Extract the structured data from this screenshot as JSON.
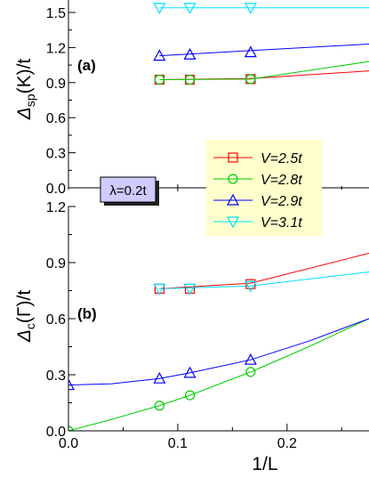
{
  "chart_data": [
    {
      "type": "line",
      "panel_label": "(a)",
      "ylabel": {
        "main": "Δ",
        "sub": "sp",
        "rest": "(K)/t"
      },
      "xlim": [
        0,
        0.275
      ],
      "ylim": [
        0,
        1.5
      ],
      "yticks": [
        "0.0",
        "0.3",
        "0.6",
        "0.9",
        "1.2",
        "1.5"
      ],
      "annotation": "λ=0.2t",
      "legend": {
        "placement": "right",
        "entries": [
          {
            "series": 0,
            "label": "V=2.5t"
          },
          {
            "series": 1,
            "label": "V=2.8t"
          },
          {
            "series": 2,
            "label": "V=2.9t"
          },
          {
            "series": 3,
            "label": "V=3.1t"
          }
        ]
      },
      "series": [
        {
          "name": "V=2.5t",
          "color": "#ff0000",
          "marker": "square",
          "x": [
            0.0833,
            0.1111,
            0.1667
          ],
          "y": [
            0.925,
            0.925,
            0.93
          ],
          "fit_x": [
            0.0833,
            0.1667,
            0.275
          ],
          "fit_y": [
            0.925,
            0.935,
            1.0
          ]
        },
        {
          "name": "V=2.8t",
          "color": "#00cc00",
          "marker": "circle",
          "x": [
            0.0833,
            0.1111,
            0.1667
          ],
          "y": [
            0.925,
            0.925,
            0.93
          ],
          "fit_x": [
            0.0833,
            0.1667,
            0.275
          ],
          "fit_y": [
            0.925,
            0.93,
            1.08
          ]
        },
        {
          "name": "V=2.9t",
          "color": "#0000ff",
          "marker": "triangle-up",
          "x": [
            0.0833,
            0.1111,
            0.1667
          ],
          "y": [
            1.13,
            1.14,
            1.16
          ],
          "fit_x": [
            0.0833,
            0.275
          ],
          "fit_y": [
            1.13,
            1.23
          ]
        },
        {
          "name": "V=3.1t",
          "color": "#00e0ff",
          "marker": "triangle-down",
          "x": [
            0.0833,
            0.1111,
            0.1667
          ],
          "y": [
            1.54,
            1.54,
            1.54
          ],
          "fit_x": [
            0.0833,
            0.275
          ],
          "fit_y": [
            1.54,
            1.54
          ]
        }
      ]
    },
    {
      "type": "line",
      "panel_label": "(b)",
      "ylabel": {
        "main": "Δ",
        "sub": "c",
        "rest": "(Γ)/t"
      },
      "xlabel": "1/L",
      "xlim": [
        0,
        0.275
      ],
      "ylim": [
        0,
        1.2
      ],
      "xticks": [
        "0.0",
        "0.1",
        "0.2"
      ],
      "yticks": [
        "0.0",
        "0.3",
        "0.6",
        "0.9",
        "1.2"
      ],
      "series": [
        {
          "name": "V=2.5t",
          "color": "#ff0000",
          "marker": "square",
          "x": [
            0.0833,
            0.1111,
            0.1667
          ],
          "y": [
            0.76,
            0.76,
            0.785
          ],
          "fit_x": [
            0.0833,
            0.1667,
            0.275
          ],
          "fit_y": [
            0.76,
            0.79,
            0.95
          ]
        },
        {
          "name": "V=2.8t",
          "color": "#00cc00",
          "marker": "circle",
          "x": [
            0,
            0.0833,
            0.1111,
            0.1667
          ],
          "y": [
            0.0,
            0.135,
            0.19,
            0.315
          ],
          "fit_x": [
            0,
            0.04,
            0.0833,
            0.1111,
            0.1667,
            0.22,
            0.275
          ],
          "fit_y": [
            0.0,
            0.062,
            0.135,
            0.19,
            0.315,
            0.45,
            0.6
          ]
        },
        {
          "name": "V=2.9t",
          "color": "#0000ff",
          "marker": "triangle-up",
          "x": [
            0,
            0.0833,
            0.1111,
            0.1667
          ],
          "y": [
            0.245,
            0.28,
            0.31,
            0.38
          ],
          "fit_x": [
            0,
            0.04,
            0.0833,
            0.1111,
            0.1667,
            0.22,
            0.275
          ],
          "fit_y": [
            0.245,
            0.252,
            0.28,
            0.31,
            0.38,
            0.48,
            0.6
          ]
        },
        {
          "name": "V=3.1t",
          "color": "#00e0ff",
          "marker": "triangle-down",
          "x": [
            0.0833,
            0.1111,
            0.1667
          ],
          "y": [
            0.76,
            0.76,
            0.775
          ],
          "fit_x": [
            0.0833,
            0.1667,
            0.275
          ],
          "fit_y": [
            0.76,
            0.775,
            0.85
          ]
        }
      ]
    }
  ]
}
